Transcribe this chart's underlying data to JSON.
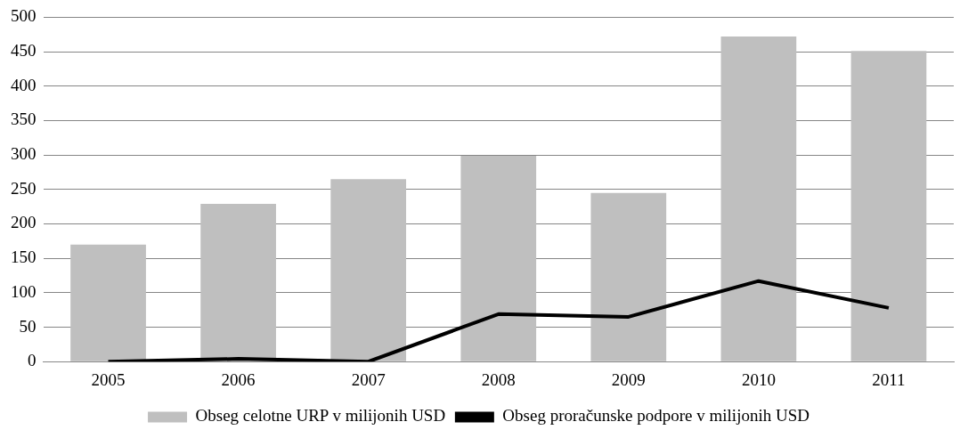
{
  "chart_data": {
    "type": "bar",
    "categories": [
      "2005",
      "2006",
      "2007",
      "2008",
      "2009",
      "2010",
      "2011"
    ],
    "series": [
      {
        "name": "Obseg celotne URP v milijonih USD",
        "color": "#bfbfbf",
        "values": [
          170,
          229,
          265,
          299,
          245,
          472,
          451
        ]
      },
      {
        "name": "Obseg proračunske podpore v milijonih USD",
        "type": "line",
        "color": "#000000",
        "values": [
          0,
          4,
          0,
          69,
          65,
          117,
          78
        ]
      }
    ],
    "ylim": [
      0,
      500
    ],
    "yticks": [
      0,
      50,
      100,
      150,
      200,
      250,
      300,
      350,
      400,
      450,
      500
    ],
    "grid": "y",
    "legend": "bottom",
    "marker": "none"
  }
}
